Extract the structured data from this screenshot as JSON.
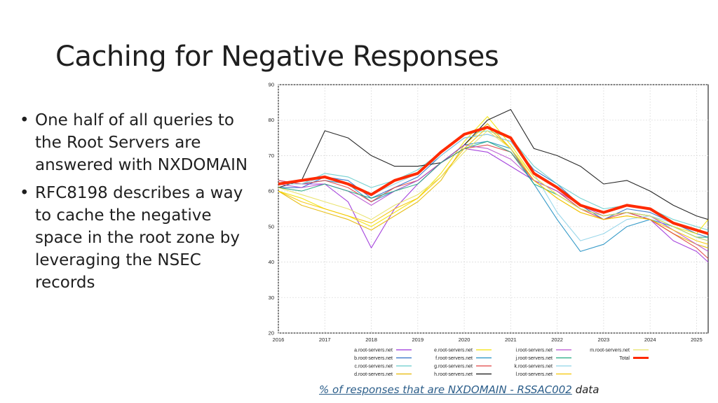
{
  "slide": {
    "title": "Caching for Negative Responses",
    "bullets": [
      "One half of all queries to the Root Servers are answered with NXDOMAIN",
      "RFC8198 describes a way to cache the negative space in the root zone by leveraging the NSEC records"
    ],
    "caption_link": "% of responses that are NXDOMAIN - RSSAC002",
    "caption_rest": " data"
  },
  "chart_data": {
    "type": "line",
    "title": "",
    "xlabel": "",
    "ylabel": "",
    "xlim": [
      2016,
      2025.25
    ],
    "ylim": [
      20,
      90
    ],
    "xticks": [
      "2016",
      "2017",
      "2018",
      "2019",
      "2020",
      "2021",
      "2022",
      "2023",
      "2024",
      "2025"
    ],
    "yticks": [
      "20",
      "30",
      "40",
      "50",
      "60",
      "70",
      "80",
      "90"
    ],
    "grid": true,
    "legend_position": "bottom",
    "series": [
      {
        "name": "a.root-servers.net",
        "color": "#9b30d9",
        "x": [
          2016,
          2016.5,
          2017,
          2017.5,
          2018,
          2018.5,
          2019,
          2019.5,
          2020,
          2020.5,
          2021,
          2021.5,
          2022,
          2022.5,
          2023,
          2023.5,
          2024,
          2024.5,
          2025,
          2025.25
        ],
        "y": [
          63,
          62,
          62,
          57,
          44,
          55,
          62,
          68,
          72,
          71,
          67,
          63,
          60,
          55,
          53,
          54,
          52,
          46,
          43,
          40
        ]
      },
      {
        "name": "b.root-servers.net",
        "color": "#2b6cc4",
        "x": [
          2016,
          2016.5,
          2017,
          2017.5,
          2018,
          2018.5,
          2019,
          2019.5,
          2020,
          2020.5,
          2021,
          2021.5,
          2022,
          2022.5,
          2023,
          2023.5,
          2024,
          2024.5,
          2025,
          2025.25
        ],
        "y": [
          61,
          61,
          64,
          63,
          58,
          61,
          64,
          70,
          75,
          76,
          74,
          66,
          62,
          56,
          52,
          55,
          54,
          51,
          48,
          47
        ]
      },
      {
        "name": "c.root-servers.net",
        "color": "#66cccc",
        "x": [
          2016,
          2016.5,
          2017,
          2017.5,
          2018,
          2018.5,
          2019,
          2019.5,
          2020,
          2020.5,
          2021,
          2021.5,
          2022,
          2022.5,
          2023,
          2023.5,
          2024,
          2024.5,
          2025,
          2025.25
        ],
        "y": [
          62,
          62,
          65,
          64,
          61,
          63,
          66,
          71,
          76,
          77,
          75,
          67,
          62,
          58,
          55,
          56,
          55,
          52,
          50,
          49
        ]
      },
      {
        "name": "d.root-servers.net",
        "color": "#e6b800",
        "x": [
          2016,
          2016.5,
          2017,
          2017.5,
          2018,
          2018.5,
          2019,
          2019.5,
          2020,
          2020.5,
          2021,
          2021.5,
          2022,
          2022.5,
          2023,
          2023.5,
          2024,
          2024.5,
          2025,
          2025.25
        ],
        "y": [
          60,
          56,
          54,
          52,
          49,
          53,
          57,
          63,
          73,
          79,
          72,
          63,
          58,
          54,
          52,
          53,
          52,
          48,
          45,
          44
        ]
      },
      {
        "name": "e.root-servers.net",
        "color": "#f2e200",
        "x": [
          2016,
          2016.5,
          2017,
          2017.5,
          2018,
          2018.5,
          2019,
          2019.5,
          2020,
          2020.5,
          2021,
          2021.5,
          2022,
          2022.5,
          2023,
          2023.5,
          2024,
          2024.5,
          2025,
          2025.25
        ],
        "y": [
          60,
          58,
          55,
          53,
          50,
          54,
          58,
          65,
          74,
          81,
          73,
          64,
          59,
          55,
          53,
          54,
          53,
          50,
          48,
          52
        ]
      },
      {
        "name": "f.root-servers.net",
        "color": "#1f8fc2",
        "x": [
          2016,
          2016.5,
          2017,
          2017.5,
          2018,
          2018.5,
          2019,
          2019.5,
          2020,
          2020.5,
          2021,
          2021.5,
          2022,
          2022.5,
          2023,
          2023.5,
          2024,
          2024.5,
          2025,
          2025.25
        ],
        "y": [
          62,
          62,
          63,
          62,
          57,
          60,
          63,
          68,
          73,
          74,
          72,
          62,
          52,
          43,
          45,
          50,
          52,
          50,
          47,
          46
        ]
      },
      {
        "name": "g.root-servers.net",
        "color": "#e04040",
        "x": [
          2016,
          2016.5,
          2017,
          2017.5,
          2018,
          2018.5,
          2019,
          2019.5,
          2020,
          2020.5,
          2021,
          2021.5,
          2022,
          2022.5,
          2023,
          2023.5,
          2024,
          2024.5,
          2025,
          2025.25
        ],
        "y": [
          63,
          62,
          63,
          61,
          57,
          61,
          63,
          68,
          72,
          73,
          71,
          63,
          60,
          55,
          52,
          54,
          52,
          48,
          44,
          41
        ]
      },
      {
        "name": "h.root-servers.net",
        "color": "#111111",
        "x": [
          2016,
          2016.5,
          2017,
          2017.5,
          2018,
          2018.5,
          2019,
          2019.5,
          2020,
          2020.5,
          2021,
          2021.5,
          2022,
          2022.5,
          2023,
          2023.5,
          2024,
          2024.5,
          2025,
          2025.25
        ],
        "y": [
          61,
          63,
          77,
          75,
          70,
          67,
          67,
          68,
          73,
          80,
          83,
          72,
          70,
          67,
          62,
          63,
          60,
          56,
          53,
          52
        ]
      },
      {
        "name": "i.root-servers.net",
        "color": "#b84fd0",
        "x": [
          2016,
          2016.5,
          2017,
          2017.5,
          2018,
          2018.5,
          2019,
          2019.5,
          2020,
          2020.5,
          2021,
          2021.5,
          2022,
          2022.5,
          2023,
          2023.5,
          2024,
          2024.5,
          2025,
          2025.25
        ],
        "y": [
          62,
          61,
          62,
          60,
          56,
          60,
          63,
          68,
          73,
          72,
          69,
          63,
          60,
          56,
          53,
          54,
          53,
          49,
          45,
          43
        ]
      },
      {
        "name": "j.root-servers.net",
        "color": "#1fa880",
        "x": [
          2016,
          2016.5,
          2017,
          2017.5,
          2018,
          2018.5,
          2019,
          2019.5,
          2020,
          2020.5,
          2021,
          2021.5,
          2022,
          2022.5,
          2023,
          2023.5,
          2024,
          2024.5,
          2025,
          2025.25
        ],
        "y": [
          61,
          60,
          62,
          60,
          58,
          60,
          62,
          68,
          72,
          74,
          71,
          62,
          59,
          55,
          53,
          54,
          53,
          50,
          47,
          47
        ]
      },
      {
        "name": "k.root-servers.net",
        "color": "#8fd3e8",
        "x": [
          2016,
          2016.5,
          2017,
          2017.5,
          2018,
          2018.5,
          2019,
          2019.5,
          2020,
          2020.5,
          2021,
          2021.5,
          2022,
          2022.5,
          2023,
          2023.5,
          2024,
          2024.5,
          2025,
          2025.25
        ],
        "y": [
          62,
          62,
          64,
          62,
          59,
          62,
          65,
          70,
          75,
          76,
          74,
          65,
          54,
          46,
          48,
          52,
          53,
          51,
          49,
          48
        ]
      },
      {
        "name": "l.root-servers.net",
        "color": "#f5c400",
        "x": [
          2016,
          2016.5,
          2017,
          2017.5,
          2018,
          2018.5,
          2019,
          2019.5,
          2020,
          2020.5,
          2021,
          2021.5,
          2022,
          2022.5,
          2023,
          2023.5,
          2024,
          2024.5,
          2025,
          2025.25
        ],
        "y": [
          60,
          57,
          55,
          53,
          51,
          55,
          58,
          64,
          72,
          78,
          72,
          63,
          58,
          54,
          52,
          53,
          52,
          49,
          46,
          45
        ]
      },
      {
        "name": "m.root-servers.net",
        "color": "#e8e060",
        "x": [
          2016,
          2016.5,
          2017,
          2017.5,
          2018,
          2018.5,
          2019,
          2019.5,
          2020,
          2020.5,
          2021,
          2021.5,
          2022,
          2022.5,
          2023,
          2023.5,
          2024,
          2024.5,
          2025,
          2025.25
        ],
        "y": [
          61,
          59,
          57,
          55,
          52,
          56,
          59,
          64,
          71,
          77,
          72,
          64,
          59,
          55,
          53,
          54,
          53,
          50,
          47,
          46
        ]
      },
      {
        "name": "Total",
        "color": "#ff2a00",
        "x": [
          2016,
          2016.5,
          2017,
          2017.5,
          2018,
          2018.5,
          2019,
          2019.5,
          2020,
          2020.5,
          2021,
          2021.5,
          2022,
          2022.5,
          2023,
          2023.5,
          2024,
          2024.5,
          2025,
          2025.25
        ],
        "y": [
          62,
          63,
          64,
          62,
          59,
          63,
          65,
          71,
          76,
          78,
          75,
          65,
          61,
          56,
          54,
          56,
          55,
          51,
          49,
          48
        ]
      }
    ]
  }
}
